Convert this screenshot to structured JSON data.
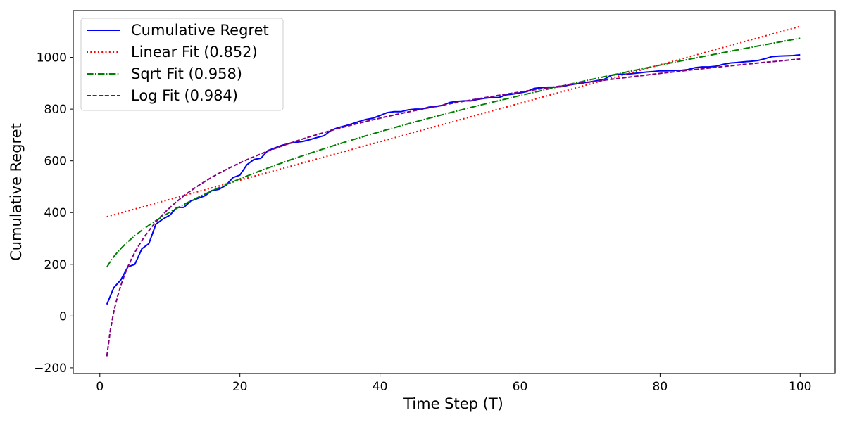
{
  "chart_data": {
    "type": "line",
    "xlabel": "Time Step (T)",
    "ylabel": "Cumulative Regret",
    "xlim": [
      -3.8,
      105
    ],
    "ylim": [
      -222,
      1181
    ],
    "x_ticks": [
      0,
      20,
      40,
      60,
      80,
      100
    ],
    "y_ticks": [
      -200,
      0,
      200,
      400,
      600,
      800,
      1000
    ],
    "x_tick_labels": [
      "0",
      "20",
      "40",
      "60",
      "80",
      "100"
    ],
    "y_tick_labels": [
      "−200",
      "0",
      "200",
      "400",
      "600",
      "800",
      "1000"
    ],
    "grid": false,
    "legend_position": "top-left",
    "series": [
      {
        "name": "Cumulative Regret",
        "color": "#0000ff",
        "style": "solid",
        "x": [
          1,
          2,
          3,
          4,
          5,
          6,
          7,
          8,
          9,
          10,
          11,
          12,
          13,
          14,
          15,
          16,
          17,
          18,
          19,
          20,
          21,
          22,
          23,
          24,
          25,
          26,
          27,
          28,
          29,
          30,
          31,
          32,
          33,
          34,
          35,
          36,
          37,
          38,
          39,
          40,
          41,
          42,
          43,
          44,
          45,
          46,
          47,
          48,
          49,
          50,
          51,
          52,
          53,
          54,
          55,
          56,
          57,
          58,
          59,
          60,
          61,
          62,
          63,
          64,
          65,
          66,
          67,
          68,
          69,
          70,
          71,
          72,
          73,
          74,
          75,
          76,
          77,
          78,
          79,
          80,
          81,
          82,
          83,
          84,
          85,
          86,
          87,
          88,
          89,
          90,
          91,
          92,
          93,
          94,
          95,
          96,
          97,
          98,
          99,
          100
        ],
        "y": [
          45,
          110,
          140,
          190,
          200,
          260,
          280,
          355,
          375,
          390,
          420,
          420,
          445,
          455,
          465,
          485,
          490,
          505,
          535,
          545,
          585,
          605,
          610,
          640,
          650,
          660,
          667,
          672,
          675,
          682,
          690,
          697,
          718,
          728,
          735,
          743,
          752,
          760,
          765,
          775,
          786,
          790,
          790,
          797,
          800,
          800,
          808,
          810,
          815,
          826,
          830,
          832,
          832,
          838,
          842,
          845,
          845,
          855,
          858,
          863,
          868,
          880,
          883,
          885,
          885,
          887,
          893,
          898,
          902,
          905,
          910,
          915,
          930,
          935,
          935,
          937,
          940,
          943,
          945,
          948,
          948,
          950,
          950,
          953,
          960,
          963,
          963,
          966,
          973,
          978,
          980,
          983,
          985,
          988,
          995,
          1003,
          1005,
          1006,
          1007,
          1010
        ]
      },
      {
        "name": "Linear Fit (0.852)",
        "color": "#ff0000",
        "style": "dotted",
        "x": [
          1,
          100
        ],
        "y": [
          384,
          1120
        ]
      },
      {
        "name": "Sqrt Fit (0.958)",
        "color": "#008000",
        "style": "dashdot",
        "fit": {
          "a": 90.55,
          "b": 98.34
        }
      },
      {
        "name": "Log Fit (0.984)",
        "color": "#800080",
        "style": "dashed",
        "fit": {
          "a": -155.4,
          "b": 249.5
        }
      }
    ]
  }
}
